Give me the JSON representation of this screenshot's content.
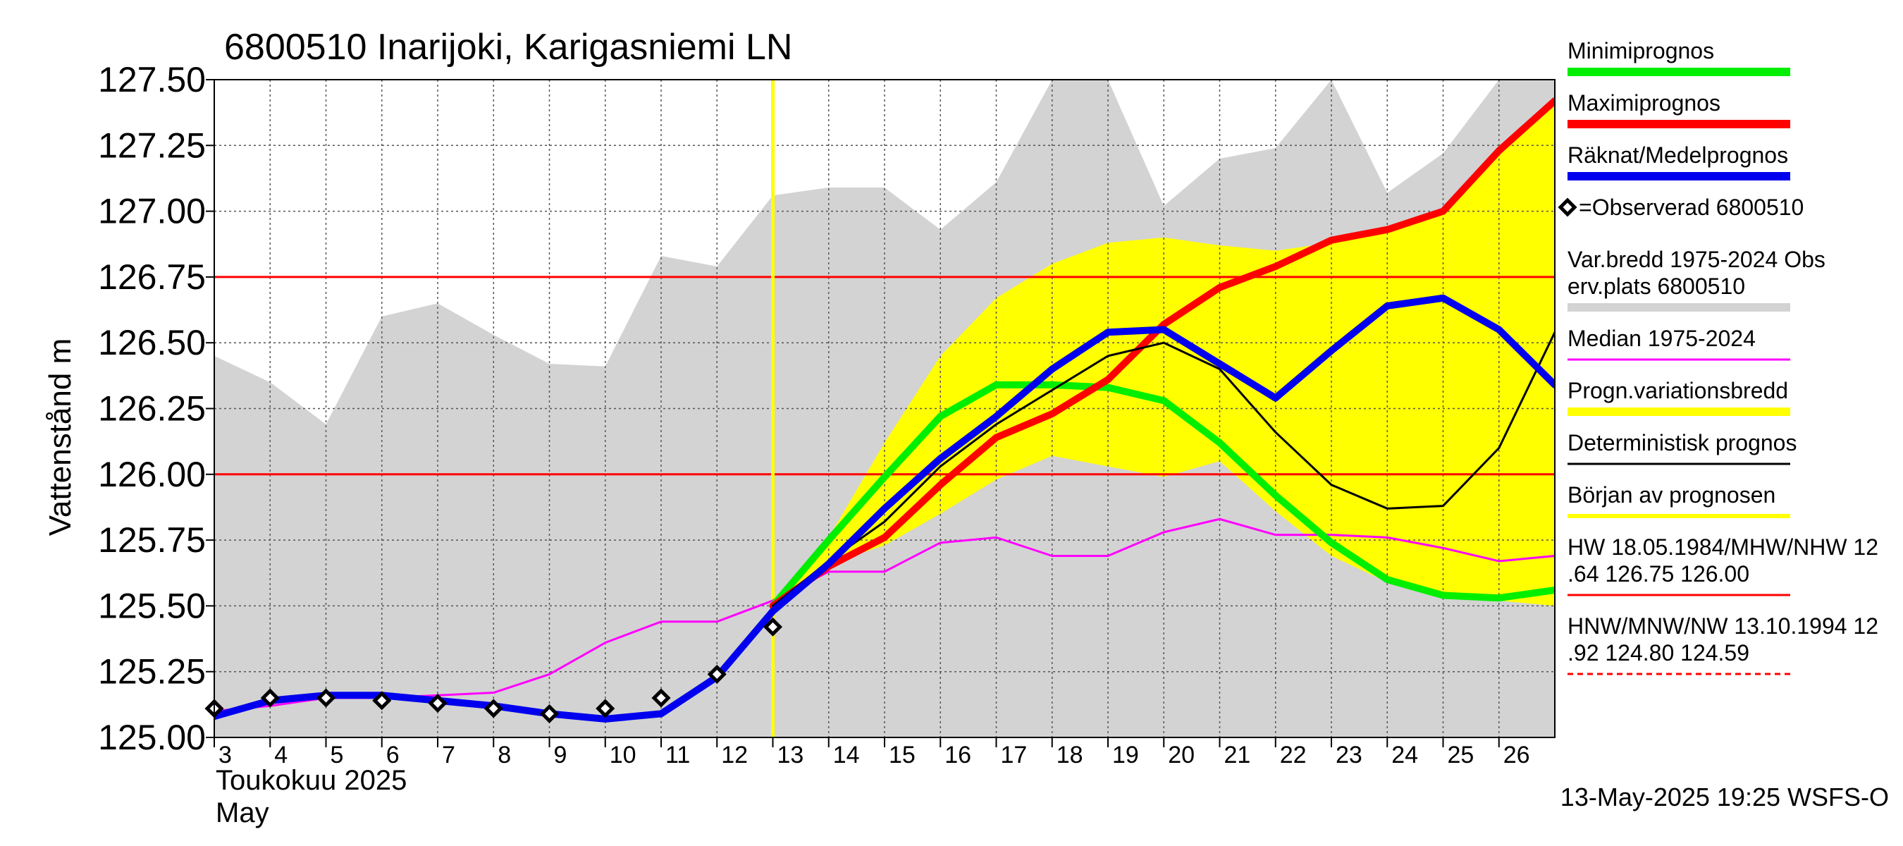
{
  "chart_data": {
    "type": "line",
    "title": "6800510 Inarijoki, Karigasniemi LN",
    "ylabel": "Vattenstånd m",
    "xlabel_line1": "Toukokuu  2025",
    "xlabel_line2": "May",
    "footer": "13-May-2025 19:25 WSFS-O",
    "ylim": [
      125.0,
      127.5
    ],
    "xlim": [
      3,
      27
    ],
    "y_ticks": [
      125.0,
      125.25,
      125.5,
      125.75,
      126.0,
      126.25,
      126.5,
      126.75,
      127.0,
      127.25,
      127.5
    ],
    "y_tick_labels": [
      "125.00",
      "125.25",
      "125.50",
      "125.75",
      "126.00",
      "126.25",
      "126.50",
      "126.75",
      "127.00",
      "127.25",
      "127.50"
    ],
    "x_ticks": [
      3,
      4,
      5,
      6,
      7,
      8,
      9,
      10,
      11,
      12,
      13,
      14,
      15,
      16,
      17,
      18,
      19,
      20,
      21,
      22,
      23,
      24,
      25,
      26
    ],
    "x_tick_labels": [
      "3",
      "4",
      "5",
      "6",
      "7",
      "8",
      "9",
      "10",
      "11",
      "12",
      "13",
      "14",
      "15",
      "16",
      "17",
      "18",
      "19",
      "20",
      "21",
      "22",
      "23",
      "24",
      "25",
      "26"
    ],
    "forecast_start": 13,
    "hlines": [
      {
        "value": 126.75,
        "color": "#ff0000"
      },
      {
        "value": 126.0,
        "color": "#ff0000"
      }
    ],
    "grid": true,
    "series": [
      {
        "name": "Var.bredd 1975-2024   Obs erv.plats 6800510",
        "kind": "band",
        "color": "#d3d3d3",
        "x": [
          3,
          4,
          5,
          6,
          7,
          8,
          9,
          10,
          11,
          12,
          13,
          14,
          15,
          16,
          17,
          18,
          19,
          20,
          21,
          22,
          23,
          24,
          25,
          26,
          27
        ],
        "upper": [
          126.45,
          126.35,
          126.19,
          126.6,
          126.65,
          126.53,
          126.42,
          126.41,
          126.83,
          126.79,
          127.06,
          127.09,
          127.09,
          126.93,
          127.11,
          127.5,
          127.5,
          127.02,
          127.2,
          127.24,
          127.5,
          127.07,
          127.22,
          127.5,
          127.5
        ],
        "lower": [
          125.0,
          125.0,
          125.0,
          125.0,
          125.0,
          125.0,
          125.0,
          125.0,
          125.0,
          125.0,
          125.0,
          125.0,
          125.0,
          125.0,
          125.0,
          125.0,
          125.0,
          125.0,
          125.0,
          125.0,
          125.0,
          125.0,
          125.0,
          125.0,
          125.0
        ]
      },
      {
        "name": "Progn.variationsbredd",
        "kind": "band",
        "color": "#ffff00",
        "x": [
          13,
          14,
          15,
          16,
          17,
          18,
          19,
          20,
          21,
          22,
          23,
          24,
          25,
          26,
          27
        ],
        "upper": [
          125.5,
          125.76,
          126.12,
          126.45,
          126.67,
          126.8,
          126.88,
          126.9,
          126.87,
          126.85,
          126.88,
          126.93,
          127.0,
          127.23,
          127.42
        ],
        "lower": [
          125.5,
          125.66,
          125.73,
          125.85,
          125.98,
          126.07,
          126.03,
          125.99,
          126.05,
          125.86,
          125.69,
          125.59,
          125.53,
          125.52,
          125.5
        ]
      },
      {
        "name": "Median 1975-2024",
        "kind": "line",
        "color": "#ff00ff",
        "width": 3,
        "x": [
          3,
          4,
          5,
          6,
          7,
          8,
          9,
          10,
          11,
          12,
          13,
          14,
          15,
          16,
          17,
          18,
          19,
          20,
          21,
          22,
          23,
          24,
          25,
          26,
          27
        ],
        "values": [
          125.1,
          125.12,
          125.15,
          125.15,
          125.16,
          125.17,
          125.24,
          125.36,
          125.44,
          125.44,
          125.52,
          125.63,
          125.63,
          125.74,
          125.76,
          125.69,
          125.69,
          125.78,
          125.83,
          125.77,
          125.77,
          125.76,
          125.72,
          125.67,
          125.69
        ]
      },
      {
        "name": "Minimiprognos",
        "kind": "line",
        "color": "#00ee00",
        "width": 10,
        "x": [
          13,
          14,
          15,
          16,
          17,
          18,
          19,
          20,
          21,
          22,
          23,
          24,
          25,
          26,
          27
        ],
        "values": [
          125.5,
          125.75,
          125.99,
          126.22,
          126.34,
          126.34,
          126.33,
          126.28,
          126.12,
          125.92,
          125.74,
          125.6,
          125.54,
          125.53,
          125.56
        ]
      },
      {
        "name": "Maximiprognos",
        "kind": "line",
        "color": "#ff0000",
        "width": 10,
        "x": [
          13,
          14,
          15,
          16,
          17,
          18,
          19,
          20,
          21,
          22,
          23,
          24,
          25,
          26,
          27
        ],
        "values": [
          125.5,
          125.65,
          125.76,
          125.96,
          126.14,
          126.23,
          126.36,
          126.57,
          126.71,
          126.79,
          126.89,
          126.93,
          127.0,
          127.23,
          127.42
        ]
      },
      {
        "name": "Deterministisk prognos",
        "kind": "line",
        "color": "#000000",
        "width": 3,
        "x": [
          13,
          14,
          15,
          16,
          17,
          18,
          19,
          20,
          21,
          22,
          23,
          24,
          25,
          26,
          27
        ],
        "values": [
          125.5,
          125.67,
          125.82,
          126.03,
          126.19,
          126.32,
          126.45,
          126.5,
          126.4,
          126.16,
          125.96,
          125.87,
          125.88,
          126.1,
          126.54
        ]
      },
      {
        "name": "Räknat/Medelprognos",
        "kind": "line",
        "color": "#0000ee",
        "width": 10,
        "x": [
          3,
          4,
          5,
          6,
          7,
          8,
          9,
          10,
          11,
          12,
          13,
          14,
          15,
          16,
          17,
          18,
          19,
          20,
          21,
          22,
          23,
          24,
          25,
          26,
          27
        ],
        "values": [
          125.08,
          125.14,
          125.16,
          125.16,
          125.14,
          125.12,
          125.09,
          125.07,
          125.09,
          125.23,
          125.48,
          125.66,
          125.87,
          126.06,
          126.22,
          126.4,
          126.54,
          126.55,
          126.42,
          126.29,
          126.47,
          126.64,
          126.67,
          126.55,
          126.34
        ]
      },
      {
        "name": "=Observerad 6800510",
        "kind": "points",
        "color": "#000000",
        "x": [
          3,
          4,
          5,
          6,
          7,
          8,
          9,
          10,
          11,
          12,
          13
        ],
        "values": [
          125.11,
          125.15,
          125.15,
          125.14,
          125.13,
          125.11,
          125.09,
          125.11,
          125.15,
          125.24,
          125.42
        ]
      }
    ],
    "legend": {
      "placement": "right",
      "items": [
        {
          "label": "Minimiprognos",
          "color": "#00ee00",
          "style": "thick"
        },
        {
          "label": "Maximiprognos",
          "color": "#ff0000",
          "style": "thick"
        },
        {
          "label": "Räknat/Medelprognos",
          "color": "#0000ee",
          "style": "thick"
        },
        {
          "label": "=Observerad 6800510",
          "color": "#000000",
          "style": "marker"
        },
        {
          "label": "Var.bredd 1975-2024   Obs",
          "label2": "erv.plats 6800510",
          "color": "#d3d3d3",
          "style": "thick"
        },
        {
          "label": "Median 1975-2024",
          "color": "#ff00ff",
          "style": "thin"
        },
        {
          "label": "Progn.variationsbredd",
          "color": "#ffff00",
          "style": "thick"
        },
        {
          "label": "Deterministisk prognos",
          "color": "#000000",
          "style": "thin"
        },
        {
          "label": "Början av prognosen",
          "color": "#ffff00",
          "style": "medium"
        },
        {
          "label": "HW 18.05.1984/MHW/NHW 12",
          "label2": ".64 126.75 126.00",
          "color": "#ff0000",
          "style": "thin"
        },
        {
          "label": "HNW/MNW/NW 13.10.1994 12",
          "label2": ".92 124.80 124.59",
          "color": "#ff0000",
          "style": "dashed"
        }
      ]
    }
  }
}
